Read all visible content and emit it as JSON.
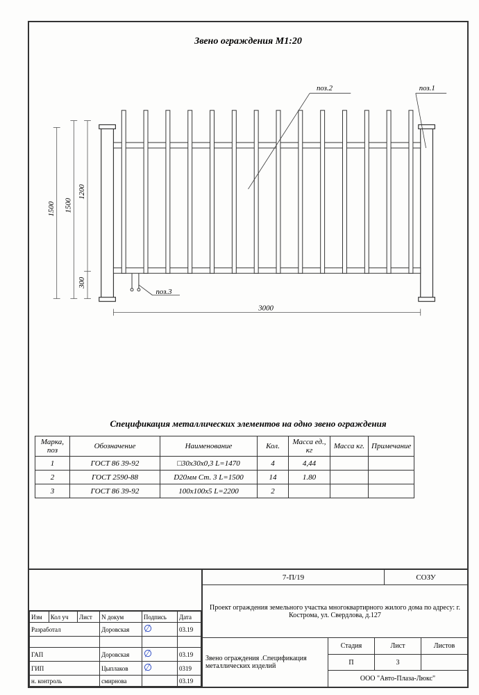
{
  "title": "Звено ограждения  М1:20",
  "drawing": {
    "labels": {
      "pos1": "поз.1",
      "pos2": "поз.2",
      "pos3": "поз.3"
    },
    "dims": {
      "width": "3000",
      "h1500a": "1500",
      "h1500b": "1500",
      "h1200": "1200",
      "h300": "300"
    },
    "num_bars": 14,
    "colors": {
      "line": "#333333",
      "thin": "#555555"
    }
  },
  "spec": {
    "title": "Спецификация  металлических элементов на одно звено ограждения",
    "columns": [
      "Марка, поз",
      "Обозначение",
      "Наименование",
      "Кол.",
      "Масса ед., кг",
      "Масса кг.",
      "Примечание"
    ],
    "rows": [
      [
        "1",
        "ГОСТ 86 39-92",
        "□30х30х0,3 L=1470",
        "4",
        "4,44",
        "",
        ""
      ],
      [
        "2",
        "ГОСТ 2590-88",
        "D20мм Ст. 3 L=1500",
        "14",
        "1.80",
        "",
        ""
      ],
      [
        "3",
        "ГОСТ 86 39-92",
        "100х100х5   L=2200",
        "2",
        "",
        "",
        ""
      ]
    ],
    "col_widths": [
      "50px",
      "130px",
      "140px",
      "45px",
      "60px",
      "55px",
      "auto"
    ]
  },
  "title_block": {
    "project_number": "7-П/19",
    "org_code": "СОЗУ",
    "project_name": "Проект  ограждения земельного участка  многоквартирного жилого дома по адресу: г. Кострома, ул. Свердлова, д.127",
    "description": "Звено ограждения .Спецификация металлических изделий",
    "stage_label": "Стадия",
    "sheet_label": "Лист",
    "sheets_label": "Листов",
    "stage": "П",
    "sheet": "3",
    "sheets": "",
    "company": "ООО \"Авто-Плаза-Люкс\"",
    "left_header": [
      "Изм",
      "Кол уч",
      "Лист",
      "N докум",
      "Подпись",
      "Дата"
    ],
    "left_rows": [
      [
        "Разработал",
        "Доровская",
        "sig",
        "03.19"
      ],
      [
        "",
        "",
        "",
        ""
      ],
      [
        "ГАП",
        "Доровская",
        "sig",
        "03.19"
      ],
      [
        "ГИП",
        "Цыплаков",
        "sig",
        "0319"
      ],
      [
        "н. контроль",
        "смирнова",
        "",
        "03.19"
      ]
    ]
  }
}
